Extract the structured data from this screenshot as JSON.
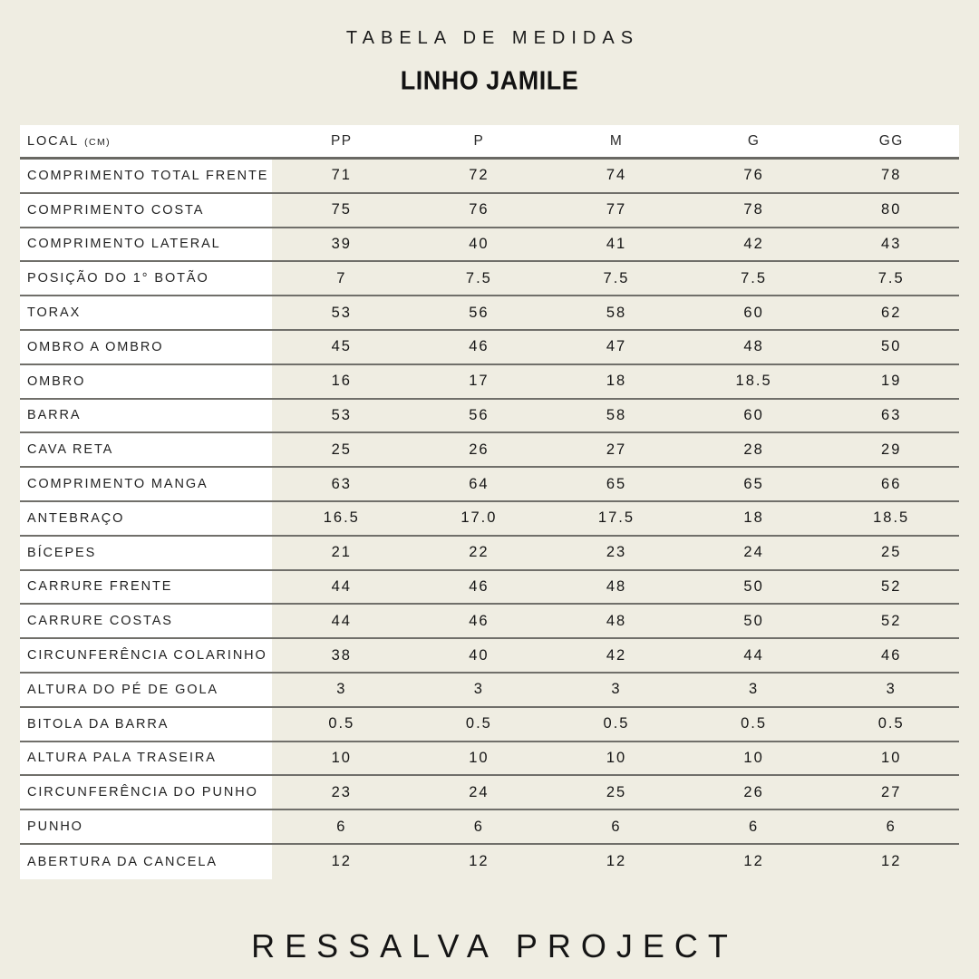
{
  "page": {
    "title": "TABELA DE MEDIDAS",
    "subtitle": "LINHO JAMILE",
    "footer_brand": "RESSALVA PROJECT"
  },
  "colors": {
    "page_background": "#EFEDE2",
    "cell_surface": "#FFFFFF",
    "separator_line": "#706F6A",
    "text": "#1C1C1C"
  },
  "table": {
    "header": {
      "local_label": "LOCAL",
      "unit": "(CM)",
      "sizes": [
        "PP",
        "P",
        "M",
        "G",
        "GG"
      ]
    },
    "rows": [
      {
        "label": "COMPRIMENTO TOTAL FRENTE",
        "values": [
          "71",
          "72",
          "74",
          "76",
          "78"
        ]
      },
      {
        "label": "COMPRIMENTO COSTA",
        "values": [
          "75",
          "76",
          "77",
          "78",
          "80"
        ]
      },
      {
        "label": "COMPRIMENTO LATERAL",
        "values": [
          "39",
          "40",
          "41",
          "42",
          "43"
        ]
      },
      {
        "label": "POSIÇÃO DO 1° BOTÃO",
        "values": [
          "7",
          "7.5",
          "7.5",
          "7.5",
          "7.5"
        ]
      },
      {
        "label": "TORAX",
        "values": [
          "53",
          "56",
          "58",
          "60",
          "62"
        ]
      },
      {
        "label": "OMBRO A OMBRO",
        "values": [
          "45",
          "46",
          "47",
          "48",
          "50"
        ]
      },
      {
        "label": "OMBRO",
        "values": [
          "16",
          "17",
          "18",
          "18.5",
          "19"
        ]
      },
      {
        "label": "BARRA",
        "values": [
          "53",
          "56",
          "58",
          "60",
          "63"
        ]
      },
      {
        "label": "CAVA RETA",
        "values": [
          "25",
          "26",
          "27",
          "28",
          "29"
        ]
      },
      {
        "label": "COMPRIMENTO MANGA",
        "values": [
          "63",
          "64",
          "65",
          "65",
          "66"
        ]
      },
      {
        "label": "ANTEBRAÇO",
        "values": [
          "16.5",
          "17.0",
          "17.5",
          "18",
          "18.5"
        ]
      },
      {
        "label": "BÍCEPES",
        "values": [
          "21",
          "22",
          "23",
          "24",
          "25"
        ]
      },
      {
        "label": "CARRURE FRENTE",
        "values": [
          "44",
          "46",
          "48",
          "50",
          "52"
        ]
      },
      {
        "label": "CARRURE COSTAS",
        "values": [
          "44",
          "46",
          "48",
          "50",
          "52"
        ]
      },
      {
        "label": "CIRCUNFERÊNCIA COLARINHO",
        "values": [
          "38",
          "40",
          "42",
          "44",
          "46"
        ]
      },
      {
        "label": "ALTURA DO PÉ DE GOLA",
        "values": [
          "3",
          "3",
          "3",
          "3",
          "3"
        ]
      },
      {
        "label": "BITOLA DA BARRA",
        "values": [
          "0.5",
          "0.5",
          "0.5",
          "0.5",
          "0.5"
        ]
      },
      {
        "label": "ALTURA PALA TRASEIRA",
        "values": [
          "10",
          "10",
          "10",
          "10",
          "10"
        ]
      },
      {
        "label": "CIRCUNFERÊNCIA DO PUNHO",
        "values": [
          "23",
          "24",
          "25",
          "26",
          "27"
        ]
      },
      {
        "label": "PUNHO",
        "values": [
          "6",
          "6",
          "6",
          "6",
          "6"
        ]
      },
      {
        "label": "ABERTURA DA CANCELA",
        "values": [
          "12",
          "12",
          "12",
          "12",
          "12"
        ]
      }
    ]
  }
}
